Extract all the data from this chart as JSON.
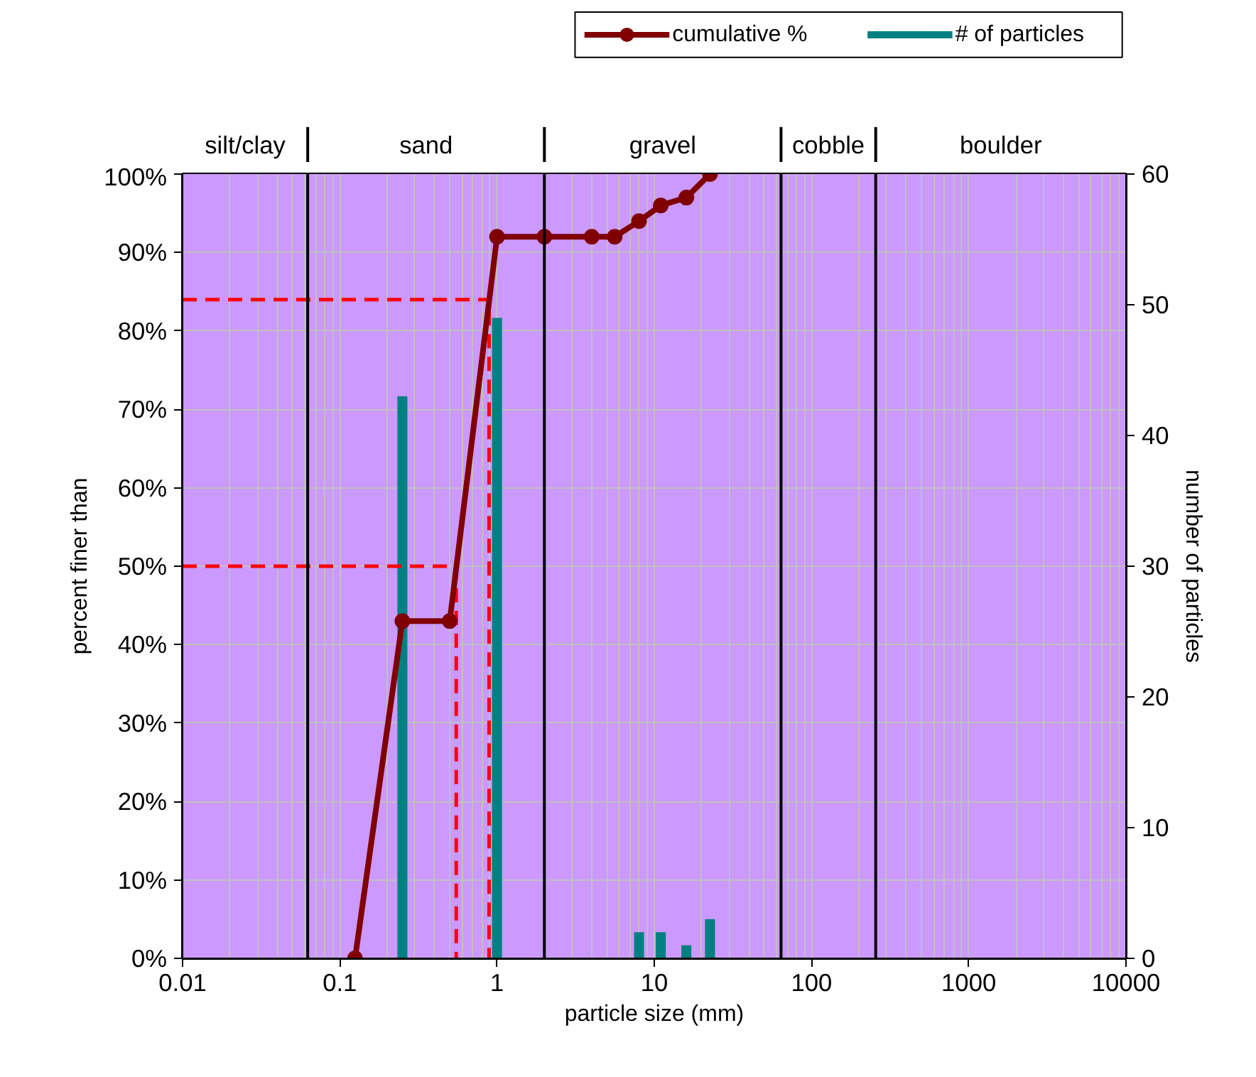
{
  "chart_data": {
    "type": "line",
    "xlabel": "particle size (mm)",
    "ylabel": "percent finer than",
    "y2label": "number of particles",
    "log": "x",
    "grid": true,
    "legend": "top right",
    "marker": "circle",
    "line_style": "solid",
    "xlim": [
      0.01,
      10000
    ],
    "xticks": [
      0.01,
      0.1,
      1,
      10,
      100,
      1000,
      10000
    ],
    "ylim": [
      0,
      100
    ],
    "yticks": [
      {
        "value": 0,
        "label": "0%"
      },
      {
        "value": 10,
        "label": "10%"
      },
      {
        "value": 20,
        "label": "20%"
      },
      {
        "value": 30,
        "label": "30%"
      },
      {
        "value": 40,
        "label": "40%"
      },
      {
        "value": 50,
        "label": "50%"
      },
      {
        "value": 60,
        "label": "60%"
      },
      {
        "value": 70,
        "label": "70%"
      },
      {
        "value": 80,
        "label": "80%"
      },
      {
        "value": 90,
        "label": "90%"
      },
      {
        "value": 100,
        "label": "100%"
      }
    ],
    "y2lim": [
      0,
      60
    ],
    "y2ticks": [
      0,
      10,
      20,
      30,
      40,
      50,
      60
    ],
    "series": [
      {
        "name": "# of particles",
        "type": "bar",
        "axis": "y2",
        "color": "#008080",
        "x": [
          0.25,
          1,
          8,
          11,
          16,
          22.6
        ],
        "values": [
          43,
          49,
          2,
          2,
          1,
          3
        ]
      },
      {
        "color": "#ff0000",
        "line_style": "dashed",
        "marker": "none",
        "x": [
          0.01,
          0.89,
          0.89
        ],
        "values": [
          84,
          84,
          0
        ]
      },
      {
        "color": "#ff0000",
        "line_style": "dashed",
        "marker": "none",
        "x": [
          0.01,
          0.55,
          0.55
        ],
        "values": [
          50,
          50,
          0
        ]
      },
      {
        "name": "cumulative %",
        "color": "#800000",
        "x": [
          0.125,
          0.25,
          0.5,
          1,
          2,
          4,
          5.6,
          8,
          11,
          16,
          22.6
        ],
        "values": [
          0,
          43,
          43,
          92,
          92,
          92,
          92,
          94,
          96,
          97,
          100
        ]
      }
    ],
    "ref_lines": [
      {
        "axis": "x",
        "value": 0.0625,
        "color": "#000000"
      },
      {
        "axis": "x",
        "value": 2,
        "color": "#000000"
      },
      {
        "axis": "x",
        "value": 64,
        "color": "#000000"
      },
      {
        "axis": "x",
        "value": 256,
        "color": "#000000"
      }
    ],
    "bands": [
      {
        "axis": "x",
        "from": 0.01,
        "to": 0.0625,
        "label": "silt/clay",
        "color": "#cc99ff"
      },
      {
        "axis": "x",
        "from": 0.0625,
        "to": 2,
        "label": "sand",
        "color": "#cc99ff"
      },
      {
        "axis": "x",
        "from": 2,
        "to": 64,
        "label": "gravel",
        "color": "#cc99ff"
      },
      {
        "axis": "x",
        "from": 64,
        "to": 256,
        "label": "cobble",
        "color": "#cc99ff"
      },
      {
        "axis": "x",
        "from": 256,
        "to": 10000,
        "label": "boulder",
        "color": "#cc99ff"
      }
    ]
  }
}
